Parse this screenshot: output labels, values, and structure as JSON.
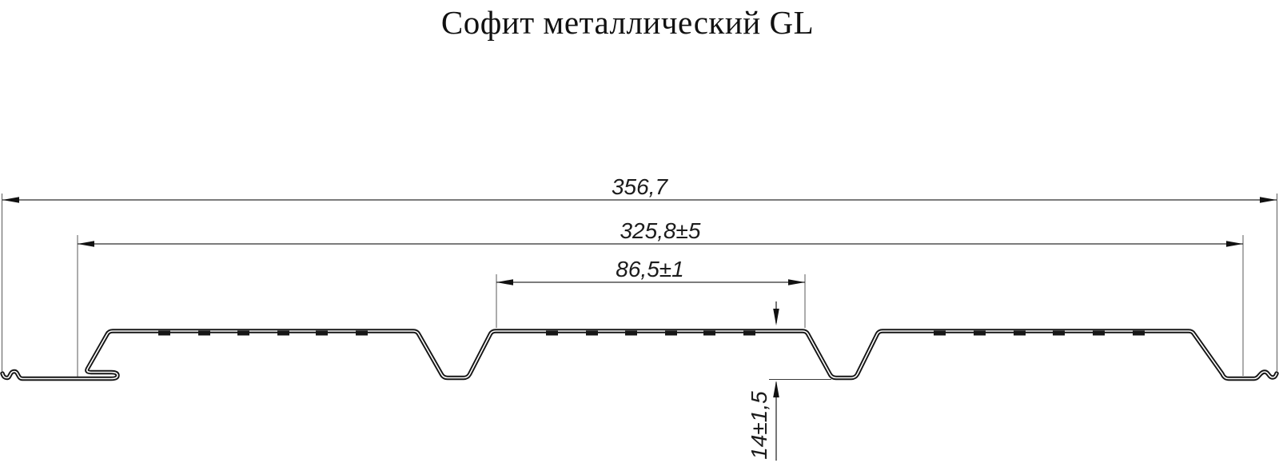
{
  "title": "Софит металлический GL",
  "dimensions": {
    "total_width": "356,7",
    "working_width": "325,8±5",
    "pan_width": "86,5±1",
    "profile_height": "14±1,5"
  },
  "colors": {
    "background": "#ffffff",
    "profile_line": "#161616",
    "dimension_line": "#2e2e2e",
    "text": "#1c1c1c"
  },
  "drawing": {
    "type": "profile-cross-section",
    "units_note": "",
    "groove_count": "2"
  }
}
